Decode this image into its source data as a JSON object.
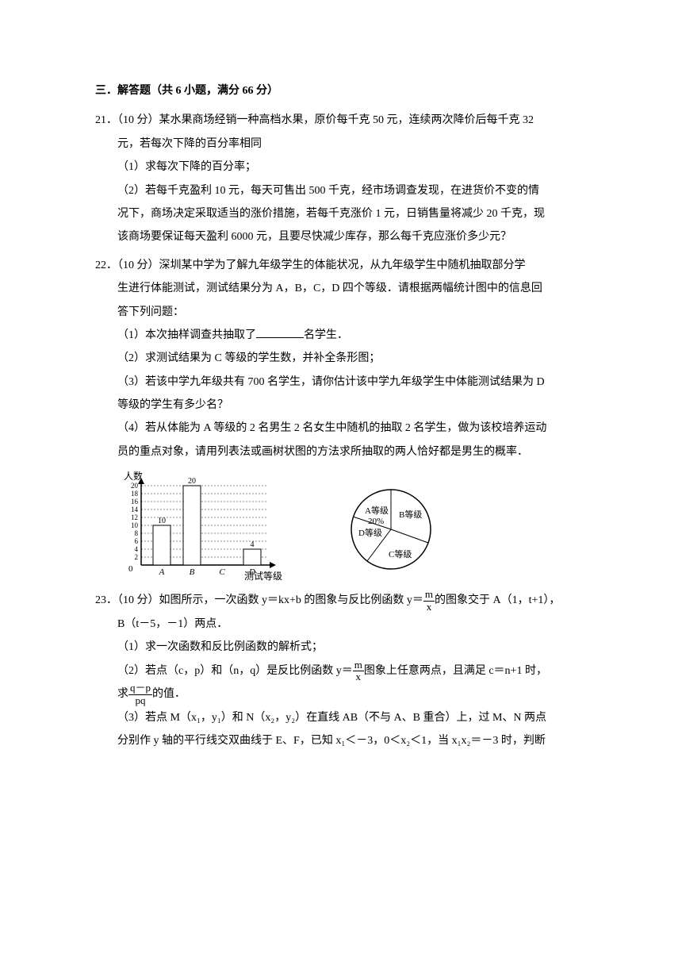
{
  "section": {
    "title": "三．解答题（共 6 小题，满分 66 分）"
  },
  "q21": {
    "head": "21．（10 分）某水果商场经销一种高档水果，原价每千克 50 元，连续两次降价后每千克 32",
    "cont": "元，若每次下降的百分率相同",
    "p1": "（1）求每次下降的百分率；",
    "p2a": "（2）若每千克盈利 10 元，每天可售出 500 千克，经市场调查发现，在进货价不变的情",
    "p2b": "况下，商场决定采取适当的涨价措施，若每千克涨价 1 元，日销售量将减少 20 千克，现",
    "p2c": "该商场要保证每天盈利 6000 元，且要尽快减少库存，那么每千克应涨价多少元？"
  },
  "q22": {
    "head": "22．（10 分）深圳某中学为了解九年级学生的体能状况，从九年级学生中随机抽取部分学",
    "cont1": "生进行体能测试，测试结果分为 A，B，C，D 四个等级．请根据两幅统计图中的信息回",
    "cont2": "答下列问题：",
    "p1a": "（1）本次抽样调查共抽取了",
    "p1b": "名学生．",
    "p2": "（2）求测试结果为 C 等级的学生数，并补全条形图；",
    "p3a": "（3）若该中学九年级共有 700 名学生，请你估计该中学九年级学生中体能测试结果为 D",
    "p3b": "等级的学生有多少名？",
    "p4a": "（4）若从体能为 A 等级的 2 名男生 2 名女生中随机的抽取 2 名学生，做为该校培养运动",
    "p4b": "员的重点对象，请用列表法或画树状图的方法求所抽取的两人恰好都是男生的概率．",
    "bar": {
      "y_label": "人数",
      "x_label": "测试等级",
      "categories": [
        "A",
        "B",
        "C",
        "D"
      ],
      "values": [
        10,
        20,
        null,
        4
      ],
      "bar_labels": [
        "10",
        "20",
        "",
        "4"
      ],
      "y_ticks": [
        0,
        2,
        4,
        6,
        8,
        10,
        12,
        14,
        16,
        18,
        20
      ],
      "y_max": 20,
      "bar_color": "#ffffff",
      "bar_border": "#000000",
      "grid_color": "#888888",
      "background": "#ffffff"
    },
    "pie": {
      "slices": [
        {
          "label": "A等级",
          "sublabel": "20%",
          "percent": 20
        },
        {
          "label": "B等级",
          "percent": 40
        },
        {
          "label": "C等级",
          "percent": 32
        },
        {
          "label": "D等级",
          "percent": 8
        }
      ],
      "border_color": "#000000",
      "background": "#ffffff"
    }
  },
  "q23": {
    "head_a": "23．（10 分）如图所示，一次函数 y＝kx+b 的图象与反比例函数 y＝",
    "head_b": "的图象交于 A（1，t+1），",
    "cont": "B（t－5，－1）两点．",
    "p1": "（1）求一次函数和反比例函数的解析式；",
    "p2a": "（2）若点（c，p）和（n，q）是反比例函数 y＝",
    "p2b": "图象上任意两点，且满足 c＝n+1 时，",
    "p2c_a": "求",
    "p2c_b": "的值．",
    "p3a": "（3）若点 M（x₁，y₁）和 N（x₂，y₂）在直线 AB（不与 A、B 重合）上，过 M、N 两点",
    "p3b": "分别作 y 轴的平行线交双曲线于 E、F，已知 x₁＜－3，0＜x₂＜1，当 x₁x₂＝－3 时，判断",
    "frac1": {
      "top": "m",
      "bot": "x"
    },
    "frac2": {
      "top": "m",
      "bot": "x"
    },
    "frac3": {
      "top": "q－p",
      "bot": "pq"
    }
  }
}
